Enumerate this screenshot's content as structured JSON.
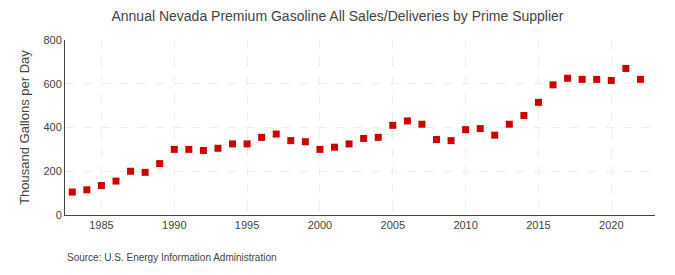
{
  "chart_data": {
    "type": "scatter",
    "title": "Annual Nevada Premium Gasoline All Sales/Deliveries by Prime Supplier",
    "ylabel": "Thousand Gallons per Day",
    "source": "Source: U.S. Energy Information Administration",
    "x": [
      1983,
      1984,
      1985,
      1986,
      1987,
      1988,
      1989,
      1990,
      1991,
      1992,
      1993,
      1994,
      1995,
      1996,
      1997,
      1998,
      1999,
      2000,
      2001,
      2002,
      2003,
      2004,
      2005,
      2006,
      2007,
      2008,
      2009,
      2010,
      2011,
      2012,
      2013,
      2014,
      2015,
      2016,
      2017,
      2018,
      2019,
      2020,
      2021,
      2022
    ],
    "values": [
      105,
      115,
      135,
      155,
      200,
      195,
      235,
      300,
      300,
      295,
      305,
      325,
      325,
      355,
      370,
      340,
      335,
      300,
      310,
      325,
      350,
      355,
      410,
      430,
      415,
      345,
      340,
      390,
      395,
      365,
      415,
      455,
      515,
      595,
      625,
      620,
      620,
      615,
      670,
      620
    ],
    "color": "#cc0000",
    "marker": "square",
    "xlim": [
      1982.5,
      2023.0
    ],
    "ylim": [
      0,
      800
    ],
    "xticks": [
      1985,
      1990,
      1995,
      2000,
      2005,
      2010,
      2015,
      2020
    ],
    "yticks": [
      0,
      200,
      400,
      600,
      800
    ],
    "grid": true
  }
}
